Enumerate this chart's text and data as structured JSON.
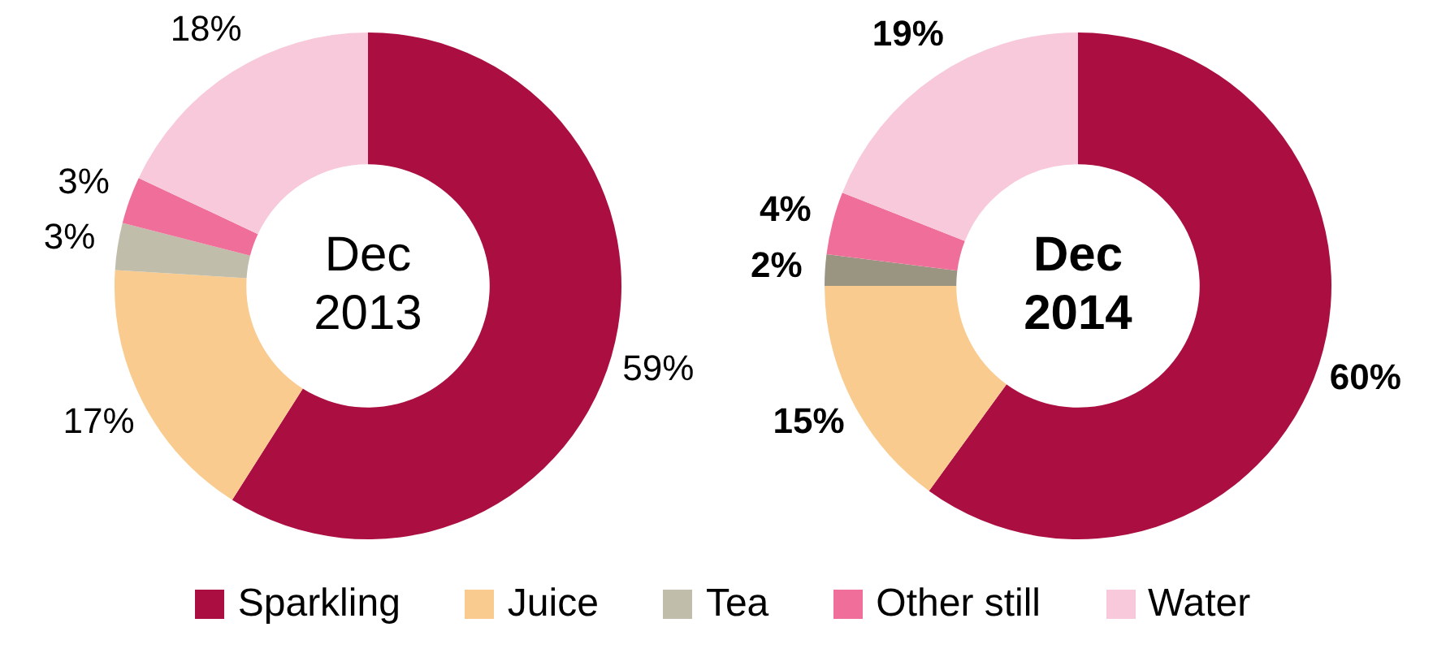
{
  "chart_data": {
    "type": "donut",
    "categories": [
      "Sparkling",
      "Juice",
      "Tea",
      "Other still",
      "Water"
    ],
    "legend": "bottom",
    "series": [
      {
        "name": "Dec 2013",
        "values": [
          59,
          17,
          3,
          3,
          18
        ],
        "colors": [
          "#ab0f42",
          "#f9cb8f",
          "#c0bdaa",
          "#f06f9a",
          "#f8c9da"
        ],
        "value_labels": [
          "59%",
          "17%",
          "3%",
          "3%",
          "18%"
        ]
      },
      {
        "name": "Dec 2014",
        "values": [
          60,
          15,
          2,
          4,
          19
        ],
        "colors": [
          "#ab0f42",
          "#f9cb8f",
          "#9a9580",
          "#f06f9a",
          "#f8c9da"
        ],
        "value_labels": [
          "60%",
          "15%",
          "2%",
          "4%",
          "19%"
        ]
      }
    ]
  }
}
